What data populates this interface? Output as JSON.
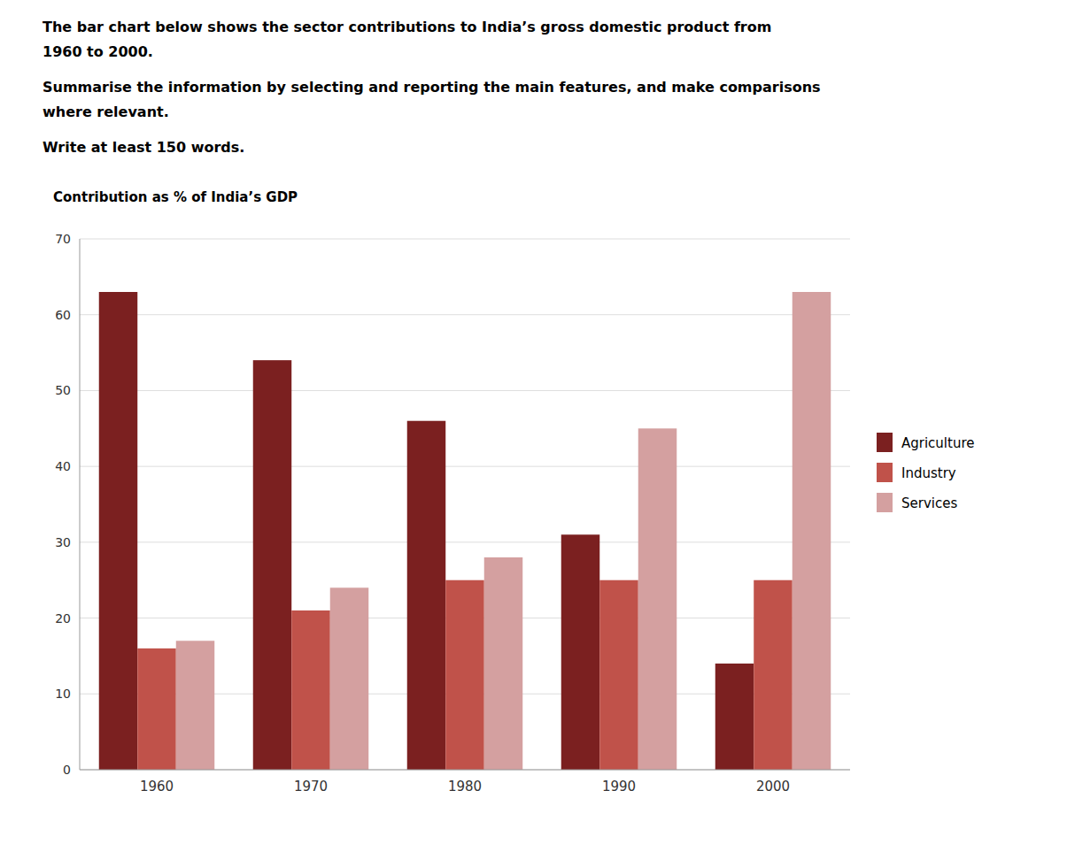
{
  "chart_data": {
    "type": "bar",
    "title": [
      "The bar chart below shows the sector contributions to India’s gross domestic product from",
      "1960 to 2000."
    ],
    "subtitle": [
      "Summarise the information by selecting and reporting the main features, and make comparisons",
      "where relevant.",
      "Write at least 150 words."
    ],
    "y_label": "Contribution as % of India’s GDP",
    "categories": [
      "1960",
      "1970",
      "1980",
      "1990",
      "2000"
    ],
    "series": [
      {
        "name": "Agriculture",
        "color": "#7B2020",
        "values": [
          63,
          54,
          46,
          31,
          14
        ]
      },
      {
        "name": "Industry",
        "color": "#C0524A",
        "values": [
          16,
          21,
          25,
          25,
          25
        ]
      },
      {
        "name": "Services",
        "color": "#D4A0A0",
        "values": [
          17,
          24,
          28,
          45,
          63
        ]
      }
    ],
    "ylim": [
      0,
      70
    ],
    "yticks": [
      0,
      10,
      20,
      30,
      40,
      50,
      60,
      70
    ],
    "grid": true,
    "legend": "right"
  }
}
